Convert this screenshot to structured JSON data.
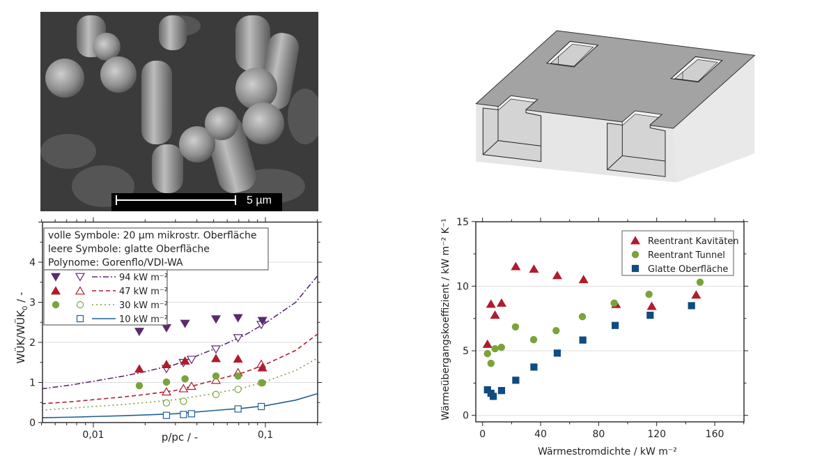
{
  "sem_image": {
    "scale_label": "5 µm"
  },
  "diagram": {
    "description_icon": "reentrant-cavity-structure"
  },
  "chart_data": [
    {
      "type": "scatter",
      "xscale": "log",
      "xlabel": "p/pc / -",
      "ylabel": "WÜK/WÜK0 / -",
      "xlim": [
        0.005,
        0.2
      ],
      "ylim": [
        0,
        5
      ],
      "xticks": [
        {
          "v": 0.01,
          "label": "0,01"
        },
        {
          "v": 0.1,
          "label": "0,1"
        }
      ],
      "yticks": [
        {
          "v": 0,
          "label": "0"
        },
        {
          "v": 1,
          "label": "1"
        },
        {
          "v": 2,
          "label": "2"
        },
        {
          "v": 3,
          "label": "3"
        },
        {
          "v": 4,
          "label": "4"
        }
      ],
      "grid": true,
      "info_box": [
        "volle Symbole: 20 µm mikrostr. Oberfläche",
        "leere Symbole: glatte Oberfläche",
        "Polynome: Gorenflo/VDI-WA"
      ],
      "legend_placement": "top-left",
      "curve_x": [
        0.005,
        0.0075,
        0.01,
        0.015,
        0.02,
        0.03,
        0.05,
        0.075,
        0.1,
        0.15,
        0.2
      ],
      "series": [
        {
          "name": "94 kW m⁻²",
          "color": "#5b2a6e",
          "marker": "triangle-down",
          "line": "dashdot",
          "filled": {
            "x": [
              0.0185,
              0.0266,
              0.0341,
              0.0516,
              0.0693,
              0.096
            ],
            "y": [
              2.27,
              2.36,
              2.47,
              2.58,
              2.61,
              2.54
            ]
          },
          "open": {
            "x": [
              0.0266,
              0.0334,
              0.0372,
              0.0516,
              0.0693,
              0.0946
            ],
            "y": [
              1.34,
              1.49,
              1.57,
              1.83,
              2.11,
              2.44
            ]
          },
          "curve_y": [
            0.84,
            0.94,
            1.03,
            1.16,
            1.27,
            1.45,
            1.83,
            2.17,
            2.48,
            3.0,
            3.65
          ]
        },
        {
          "name": "47 kW m⁻²",
          "color": "#b01c2e",
          "marker": "triangle-up",
          "line": "dashed",
          "filled": {
            "x": [
              0.0185,
              0.0266,
              0.0341,
              0.0516,
              0.0693,
              0.096
            ],
            "y": [
              1.34,
              1.45,
              1.54,
              1.6,
              1.59,
              1.37
            ]
          },
          "open": {
            "x": [
              0.0266,
              0.0334,
              0.0372,
              0.0516,
              0.0693,
              0.0946
            ],
            "y": [
              0.77,
              0.85,
              0.91,
              1.06,
              1.25,
              1.46
            ]
          },
          "curve_y": [
            0.47,
            0.52,
            0.57,
            0.64,
            0.7,
            0.8,
            1.05,
            1.25,
            1.45,
            1.8,
            2.2
          ]
        },
        {
          "name": "30 kW m⁻²",
          "color": "#7aa33a",
          "marker": "circle",
          "line": "dotted",
          "filled": {
            "x": [
              0.0185,
              0.0266,
              0.0341,
              0.0516,
              0.0693,
              0.096
            ],
            "y": [
              0.92,
              1.01,
              1.09,
              1.16,
              1.16,
              0.99
            ]
          },
          "open": {
            "x": [
              0.0266,
              0.0334,
              0.0516,
              0.0693,
              0.0946
            ],
            "y": [
              0.49,
              0.53,
              0.7,
              0.83,
              0.99
            ]
          },
          "curve_y": [
            0.31,
            0.36,
            0.4,
            0.45,
            0.5,
            0.57,
            0.72,
            0.87,
            1.02,
            1.3,
            1.6
          ]
        },
        {
          "name": "10 kW m⁻²",
          "color": "#1f5f95",
          "marker": "square",
          "line": "solid",
          "filled": {
            "x": [],
            "y": []
          },
          "open": {
            "x": [
              0.0266,
              0.0334,
              0.0372,
              0.0693,
              0.0946
            ],
            "y": [
              0.18,
              0.2,
              0.22,
              0.34,
              0.4
            ]
          },
          "curve_y": [
            0.12,
            0.135,
            0.15,
            0.17,
            0.19,
            0.22,
            0.3,
            0.36,
            0.42,
            0.56,
            0.72
          ]
        }
      ]
    },
    {
      "type": "scatter",
      "xlabel": "Wärmestromdichte / kW m⁻²",
      "ylabel": "Wärmeübergangskoeffizient / kW m⁻² K⁻¹",
      "xlim": [
        -5,
        180
      ],
      "ylim": [
        -0.5,
        15
      ],
      "xticks": [
        {
          "v": 0,
          "label": "0"
        },
        {
          "v": 40,
          "label": "40"
        },
        {
          "v": 80,
          "label": "80"
        },
        {
          "v": 120,
          "label": "120"
        },
        {
          "v": 160,
          "label": "160"
        }
      ],
      "yticks": [
        {
          "v": 0,
          "label": "0"
        },
        {
          "v": 5,
          "label": "5"
        },
        {
          "v": 10,
          "label": "10"
        },
        {
          "v": 15,
          "label": "15"
        }
      ],
      "grid": true,
      "legend_placement": "top-right",
      "series": [
        {
          "name": "Reentrant Kavitäten",
          "color": "#b01c2e",
          "marker": "triangle-up",
          "x": [
            3.4,
            5.8,
            8.6,
            13.1,
            22.9,
            35.4,
            51.5,
            69.6,
            92,
            116.6,
            147.2
          ],
          "y": [
            5.52,
            8.62,
            7.77,
            8.7,
            11.53,
            11.33,
            10.83,
            10.52,
            8.6,
            8.45,
            9.33
          ]
        },
        {
          "name": "Reentrant Tunnel",
          "color": "#7aa33a",
          "marker": "circle",
          "x": [
            3.4,
            5.8,
            8.6,
            13,
            22.7,
            35.2,
            50.7,
            68.8,
            90.7,
            114.7,
            149.9
          ],
          "y": [
            4.78,
            4.03,
            5.16,
            5.27,
            6.85,
            5.86,
            6.56,
            7.64,
            8.69,
            9.37,
            10.31
          ]
        },
        {
          "name": "Glatte Oberfläche",
          "color": "#0f4c81",
          "marker": "square",
          "x": [
            3.4,
            5.8,
            7.4,
            13.1,
            22.9,
            35.4,
            51.5,
            69.1,
            91.4,
            115.5,
            144
          ],
          "y": [
            1.98,
            1.71,
            1.47,
            1.92,
            2.72,
            3.74,
            4.82,
            5.83,
            6.96,
            7.75,
            8.49
          ]
        }
      ]
    }
  ]
}
